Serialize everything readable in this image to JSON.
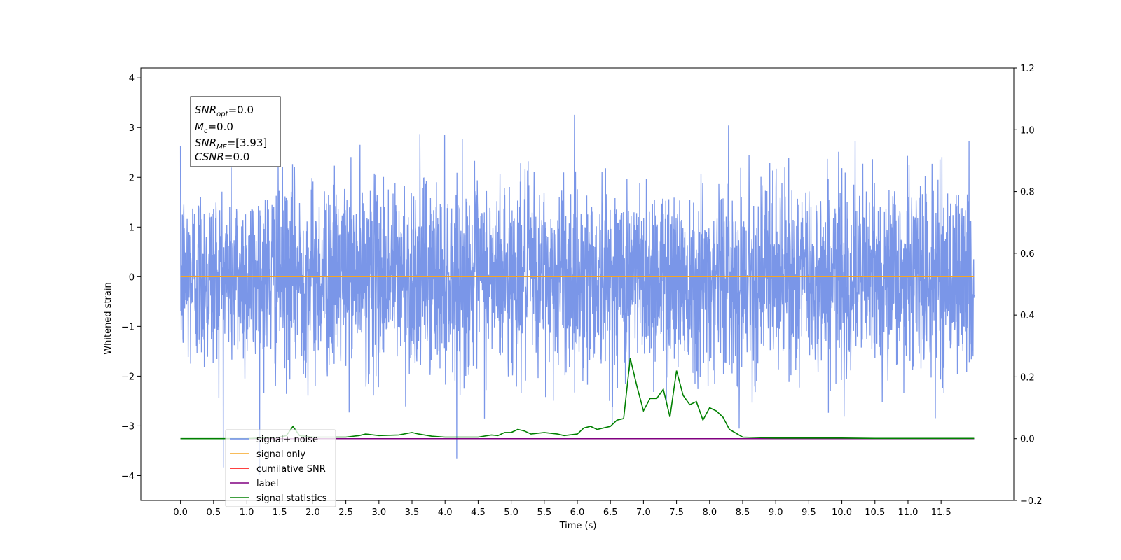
{
  "chart_data": {
    "type": "line",
    "xlabel": "Time (s)",
    "ylabel": "Whitened strain",
    "xlim": [
      -0.6,
      12.6
    ],
    "ylim": [
      -4.5,
      4.2
    ],
    "y2lim": [
      -0.2,
      1.2
    ],
    "x_ticks": [
      "0.0",
      "0.5",
      "1.0",
      "1.5",
      "2.0",
      "2.5",
      "3.0",
      "3.5",
      "4.0",
      "4.5",
      "5.0",
      "5.5",
      "6.0",
      "6.5",
      "7.0",
      "7.5",
      "8.0",
      "8.5",
      "9.0",
      "9.5",
      "10.0",
      "10.5",
      "11.0",
      "11.5"
    ],
    "y_ticks": [
      "−4",
      "−3",
      "−2",
      "−1",
      "0",
      "1",
      "2",
      "3",
      "4"
    ],
    "y2_ticks": [
      "−0.2",
      "0.0",
      "0.2",
      "0.4",
      "0.6",
      "0.8",
      "1.0",
      "1.2"
    ],
    "grid": false,
    "legend_placement": "lower-left",
    "info_box": {
      "snr_opt": {
        "base": "SNR",
        "sub": "opt",
        "value": "=0.0"
      },
      "mc": {
        "base": "M",
        "sub": "c",
        "value": "=0.0"
      },
      "snr_mf": {
        "base": "SNR",
        "sub": "MF",
        "value": "=[3.93]"
      },
      "csnr": {
        "base": "CSNR",
        "sub": "",
        "value": "=0.0"
      }
    },
    "series": [
      {
        "name": "signal+ noise",
        "axis": "left",
        "color": "#6b8be6",
        "kind": "noise",
        "x_range": [
          0,
          12.0
        ],
        "mean": 0.0,
        "std": 0.95
      },
      {
        "name": "signal only",
        "axis": "left",
        "color": "#f5a623",
        "x": [
          0,
          12.0
        ],
        "y": [
          0,
          0
        ]
      },
      {
        "name": "cumilative SNR",
        "axis": "left",
        "color": "#ff0000",
        "x": [],
        "y": []
      },
      {
        "name": "label",
        "axis": "right",
        "color": "#800080",
        "x": [
          0,
          12.0
        ],
        "y": [
          0,
          0
        ]
      },
      {
        "name": "signal statistics",
        "axis": "right",
        "color": "#008000",
        "x": [
          0.0,
          0.5,
          1.0,
          1.5,
          1.6,
          1.7,
          1.8,
          2.0,
          2.5,
          2.7,
          2.8,
          3.0,
          3.3,
          3.5,
          3.6,
          3.8,
          4.0,
          4.5,
          4.7,
          4.8,
          4.9,
          5.0,
          5.1,
          5.2,
          5.3,
          5.5,
          5.7,
          5.8,
          6.0,
          6.1,
          6.2,
          6.3,
          6.4,
          6.5,
          6.6,
          6.7,
          6.8,
          6.9,
          7.0,
          7.1,
          7.2,
          7.3,
          7.4,
          7.5,
          7.6,
          7.7,
          7.8,
          7.9,
          8.0,
          8.1,
          8.2,
          8.3,
          8.5,
          9.0,
          9.5,
          10.0,
          10.5,
          11.0,
          11.5,
          12.0
        ],
        "y": [
          0.0,
          0.0,
          0.0,
          0.005,
          0.01,
          0.04,
          0.01,
          0.005,
          0.005,
          0.01,
          0.015,
          0.01,
          0.012,
          0.02,
          0.015,
          0.008,
          0.005,
          0.005,
          0.012,
          0.01,
          0.02,
          0.02,
          0.03,
          0.025,
          0.015,
          0.02,
          0.015,
          0.01,
          0.015,
          0.035,
          0.04,
          0.03,
          0.035,
          0.04,
          0.06,
          0.065,
          0.26,
          0.17,
          0.09,
          0.13,
          0.13,
          0.16,
          0.07,
          0.22,
          0.14,
          0.11,
          0.12,
          0.06,
          0.1,
          0.09,
          0.07,
          0.03,
          0.005,
          0.002,
          0.002,
          0.002,
          0.001,
          0.001,
          0.001,
          0.001
        ]
      }
    ]
  }
}
